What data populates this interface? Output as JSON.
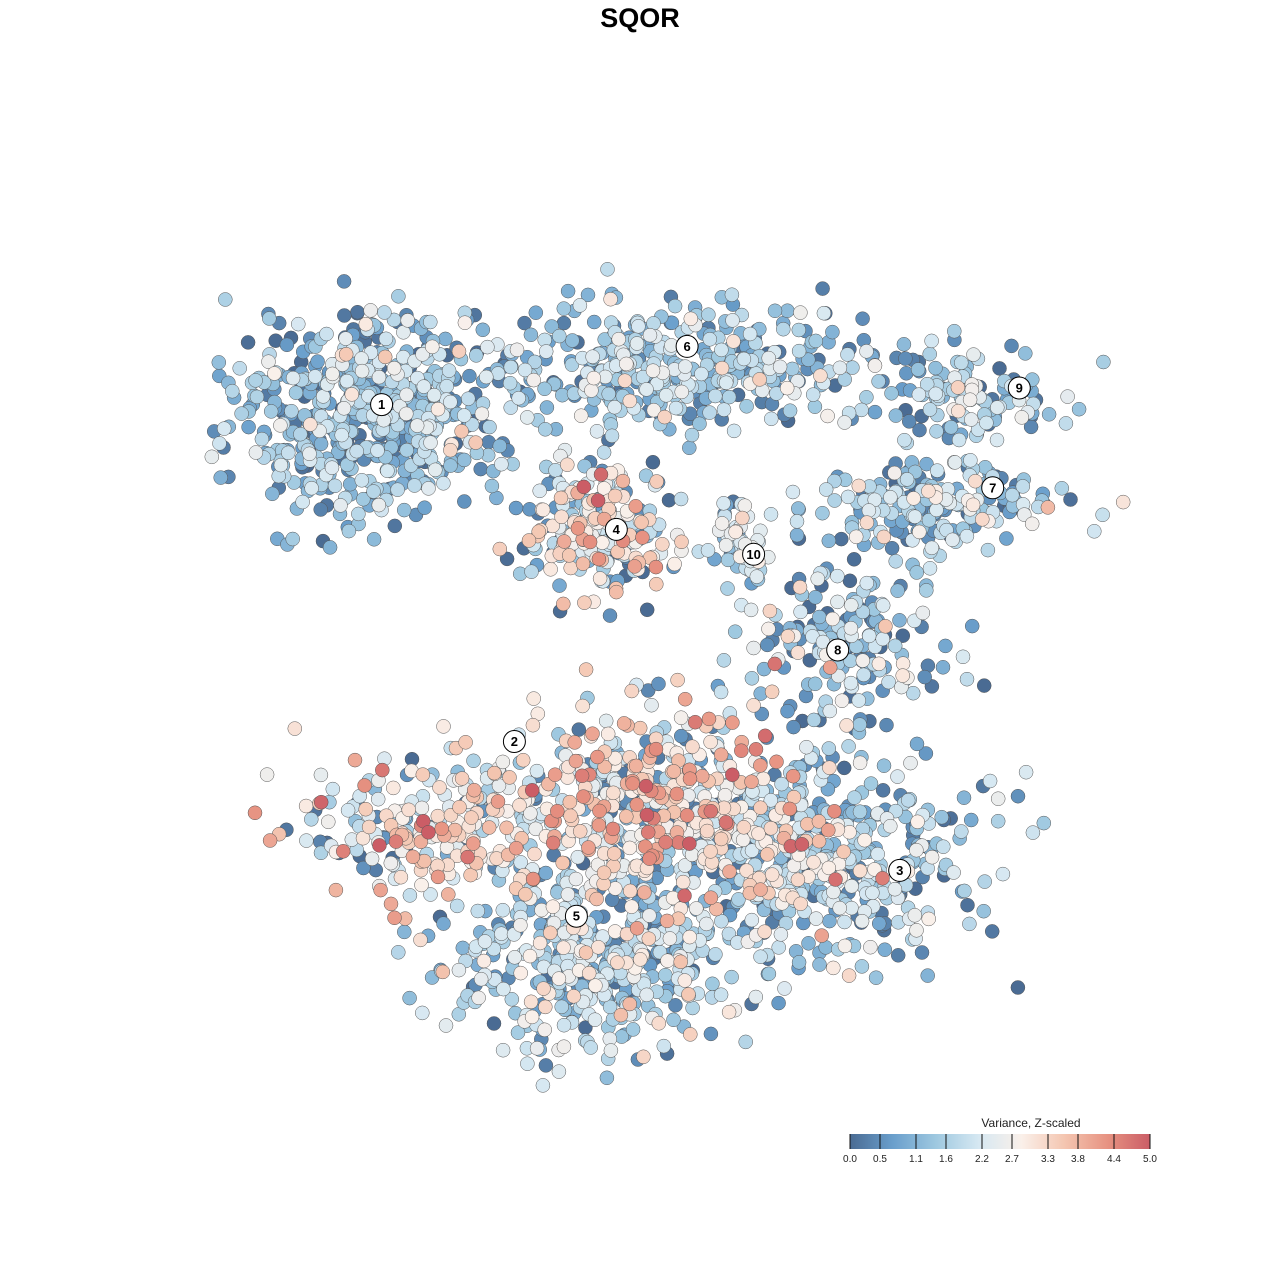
{
  "chart_data": {
    "type": "scatter",
    "title": "SQOR",
    "xlabel": "",
    "ylabel": "",
    "grid": false,
    "legend": {
      "title": "Variance, Z-scaled",
      "placement": "bottom-right",
      "range": [
        0.0,
        5.0
      ],
      "ticks": [
        "0.0",
        "0.5",
        "1.1",
        "1.6",
        "2.2",
        "2.7",
        "3.3",
        "3.8",
        "4.4",
        "5.0"
      ],
      "tick_values": [
        0.0,
        0.5,
        1.1,
        1.6,
        2.2,
        2.7,
        3.3,
        3.8,
        4.4,
        5.0
      ],
      "colors": [
        "#4a6b93",
        "#6a9fcc",
        "#9ec8e0",
        "#d6e8f2",
        "#faf0ea",
        "#f4c6b1",
        "#e79382",
        "#cb5d66"
      ]
    },
    "clusters": [
      {
        "label": "1",
        "x": -6.2,
        "y": 5.3,
        "sx": 1.55,
        "sy": 1.25,
        "n": 600,
        "level": 1.3,
        "spread": 0.75
      },
      {
        "label": "6",
        "x": 0.8,
        "y": 6.4,
        "sx": 2.3,
        "sy": 0.75,
        "n": 430,
        "level": 1.5,
        "spread": 0.75
      },
      {
        "label": "9",
        "x": 7.2,
        "y": 5.8,
        "sx": 0.95,
        "sy": 0.55,
        "n": 120,
        "level": 1.5,
        "spread": 0.75
      },
      {
        "label": "7",
        "x": 6.6,
        "y": 3.2,
        "sx": 1.5,
        "sy": 0.55,
        "n": 200,
        "level": 1.6,
        "spread": 0.85
      },
      {
        "label": "4",
        "x": -1.1,
        "y": 2.6,
        "sx": 0.8,
        "sy": 0.75,
        "n": 250,
        "level": 2.4,
        "spread": 1.1
      },
      {
        "label": "10",
        "x": 2.3,
        "y": 2.1,
        "sx": 0.35,
        "sy": 0.55,
        "n": 60,
        "level": 1.9,
        "spread": 0.6
      },
      {
        "label": "8",
        "x": 4.6,
        "y": -0.2,
        "sx": 1.15,
        "sy": 0.85,
        "n": 190,
        "level": 1.4,
        "spread": 0.9
      },
      {
        "label": "2",
        "x": -5.0,
        "y": -4.6,
        "sx": 1.35,
        "sy": 0.85,
        "n": 210,
        "level": 2.9,
        "spread": 0.85
      },
      {
        "label": "3",
        "x": 4.3,
        "y": -5.4,
        "sx": 1.7,
        "sy": 1.15,
        "n": 420,
        "level": 1.6,
        "spread": 0.75
      },
      {
        "label": "5",
        "x": -1.0,
        "y": -7.8,
        "sx": 1.75,
        "sy": 1.05,
        "n": 460,
        "level": 1.8,
        "spread": 0.8
      },
      {
        "label": "",
        "x": 0.3,
        "y": -4.2,
        "sx": 2.0,
        "sy": 1.25,
        "n": 560,
        "level": 2.9,
        "spread": 1.0
      }
    ],
    "cluster_labels": [
      {
        "label": "1",
        "x": -5.9,
        "y": 5.6
      },
      {
        "label": "6",
        "x": 1.0,
        "y": 7.0
      },
      {
        "label": "9",
        "x": 8.5,
        "y": 6.0
      },
      {
        "label": "7",
        "x": 7.9,
        "y": 3.6
      },
      {
        "label": "4",
        "x": -0.6,
        "y": 2.6
      },
      {
        "label": "10",
        "x": 2.5,
        "y": 2.0
      },
      {
        "label": "8",
        "x": 4.4,
        "y": -0.3
      },
      {
        "label": "2",
        "x": -2.9,
        "y": -2.5
      },
      {
        "label": "3",
        "x": 5.8,
        "y": -5.6
      },
      {
        "label": "5",
        "x": -1.5,
        "y": -6.7
      }
    ],
    "axis_range": {
      "x": [
        -10,
        11
      ],
      "y": [
        -11,
        11
      ]
    }
  }
}
